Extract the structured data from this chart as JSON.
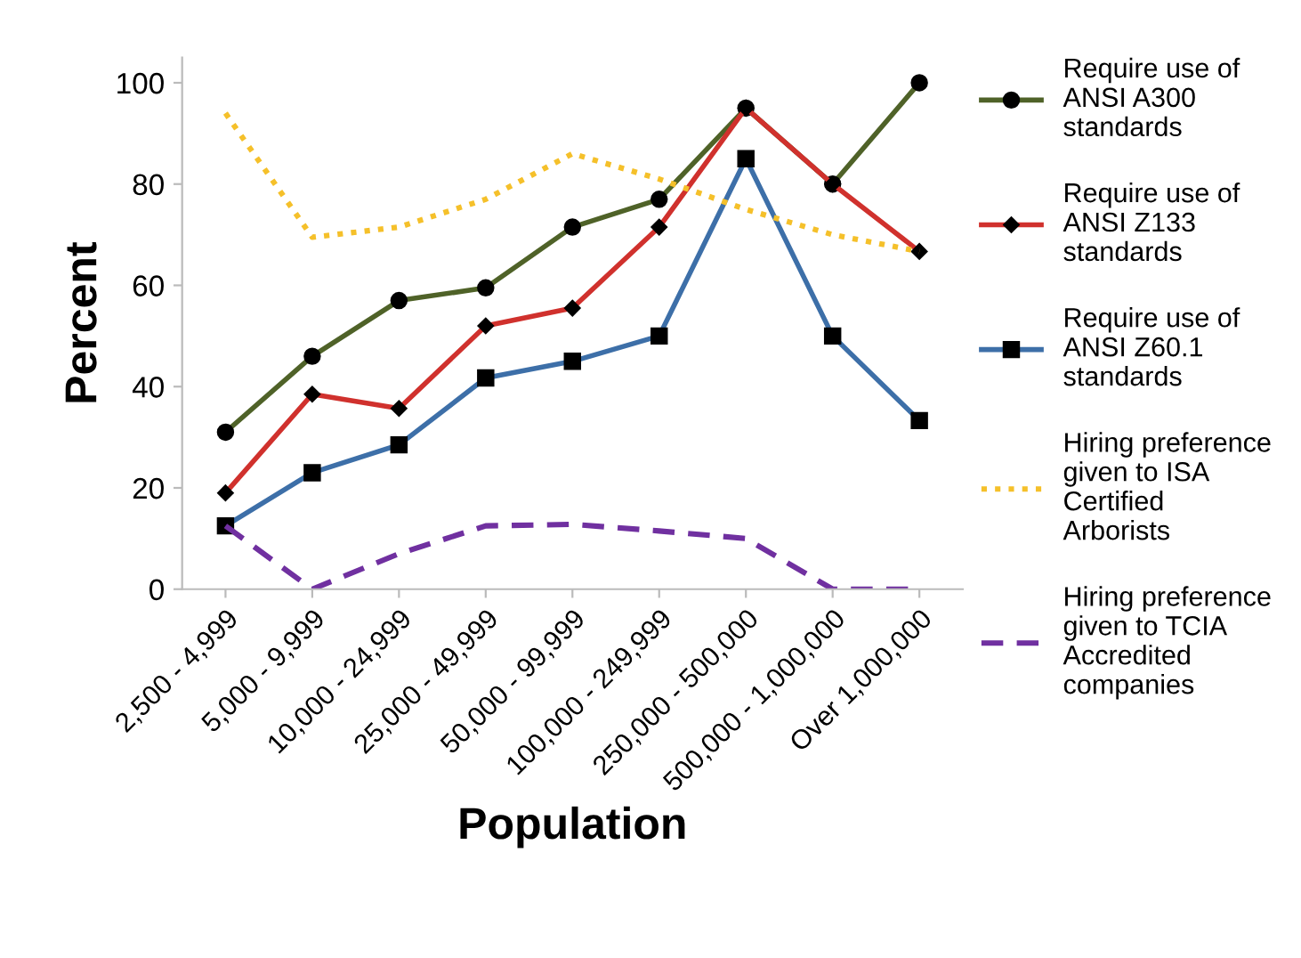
{
  "chart_data": {
    "type": "line",
    "xlabel": "Population",
    "ylabel": "Percent",
    "categories": [
      "2,500 - 4,999",
      "5,000 - 9,999",
      "10,000 - 24,999",
      "25,000 - 49,999",
      "50,000 - 99,999",
      "100,000 - 249,999",
      "250,000 - 500,000",
      "500,000 - 1,000,000",
      "Over 1,000,000"
    ],
    "series": [
      {
        "name": "Require use of ANSI A300 standards",
        "color": "#4f6228",
        "marker": "circle",
        "line_style": "solid",
        "values": [
          31,
          46,
          57,
          59.5,
          71.5,
          77,
          95,
          80,
          100
        ]
      },
      {
        "name": "Require use of ANSI Z133 standards",
        "color": "#d0312d",
        "marker": "diamond",
        "line_style": "solid",
        "values": [
          19,
          38.5,
          35.7,
          52,
          55.5,
          71.5,
          95,
          80,
          66.7
        ]
      },
      {
        "name": "Require use of ANSI Z60.1 standards",
        "color": "#3d6fa8",
        "marker": "square",
        "line_style": "solid",
        "values": [
          12.5,
          23,
          28.5,
          41.7,
          45,
          50,
          85,
          50,
          33.3
        ]
      },
      {
        "name": "Hiring preference given to ISA Certified Arborists",
        "color": "#f5c02a",
        "marker": "none",
        "line_style": "dotted",
        "values": [
          94,
          69.5,
          71.5,
          77,
          86,
          81,
          75,
          70,
          66.7
        ]
      },
      {
        "name": "Hiring preference given to TCIA Accredited companies",
        "color": "#7030a0",
        "marker": "none",
        "line_style": "dashed",
        "values": [
          12.5,
          0,
          7,
          12.5,
          12.8,
          11.5,
          10,
          0,
          0
        ]
      }
    ],
    "ylim": [
      0,
      105
    ],
    "yticks": [
      0,
      20,
      40,
      60,
      80,
      100
    ],
    "grid": false,
    "legend": "right"
  }
}
